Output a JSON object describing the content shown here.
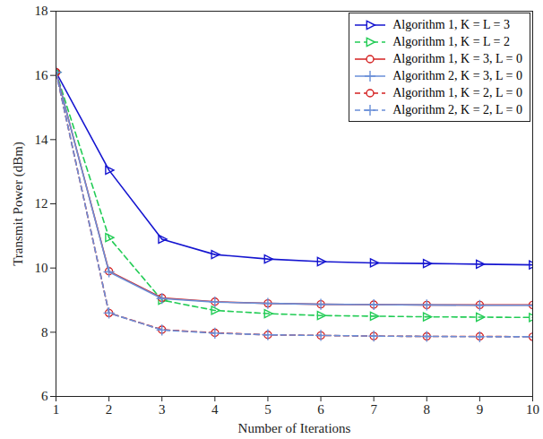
{
  "chart_data": {
    "type": "line",
    "x_label": "Number of Iterations",
    "y_label": "Transmit Power (dBm)",
    "x": [
      1,
      2,
      3,
      4,
      5,
      6,
      7,
      8,
      9,
      10
    ],
    "xlim": [
      1,
      10
    ],
    "xticks": [
      1,
      2,
      3,
      4,
      5,
      6,
      7,
      8,
      9,
      10
    ],
    "ylim": [
      6,
      18
    ],
    "yticks": [
      6,
      8,
      10,
      12,
      14,
      16,
      18
    ],
    "grid": false,
    "legend": "top-right",
    "series": [
      {
        "name": "Algorithm 1, K = L = 3",
        "color": "#1515d0",
        "marker": "triangle-right",
        "line_style": "solid",
        "values": [
          16.1,
          13.05,
          10.9,
          10.42,
          10.28,
          10.2,
          10.16,
          10.14,
          10.12,
          10.1
        ]
      },
      {
        "name": "Algorithm 1, K = L = 2",
        "color": "#22cc55",
        "marker": "triangle-right",
        "line_style": "dashed",
        "values": [
          16.1,
          10.95,
          9.0,
          8.68,
          8.58,
          8.52,
          8.5,
          8.48,
          8.47,
          8.46
        ]
      },
      {
        "name": "Algorithm 1, K = 3, L = 0",
        "color": "#d42020",
        "marker": "circle",
        "line_style": "solid",
        "values": [
          16.1,
          9.9,
          9.07,
          8.95,
          8.9,
          8.87,
          8.86,
          8.85,
          8.85,
          8.85
        ]
      },
      {
        "name": "Algorithm 2, K = 3, L = 0",
        "color": "#6a8fd8",
        "marker": "plus",
        "line_style": "solid",
        "values": [
          16.1,
          9.88,
          9.05,
          8.94,
          8.9,
          8.87,
          8.86,
          8.85,
          8.84,
          8.84
        ]
      },
      {
        "name": "Algorithm 1, K = 2, L = 0",
        "color": "#d42020",
        "marker": "circle",
        "line_style": "dashed",
        "values": [
          16.1,
          8.6,
          8.08,
          7.98,
          7.92,
          7.9,
          7.88,
          7.87,
          7.87,
          7.86
        ]
      },
      {
        "name": "Algorithm 2, K = 2, L = 0",
        "color": "#6a8fd8",
        "marker": "plus",
        "line_style": "dashed",
        "values": [
          16.1,
          8.6,
          8.07,
          7.97,
          7.92,
          7.9,
          7.88,
          7.87,
          7.86,
          7.86
        ]
      }
    ]
  }
}
